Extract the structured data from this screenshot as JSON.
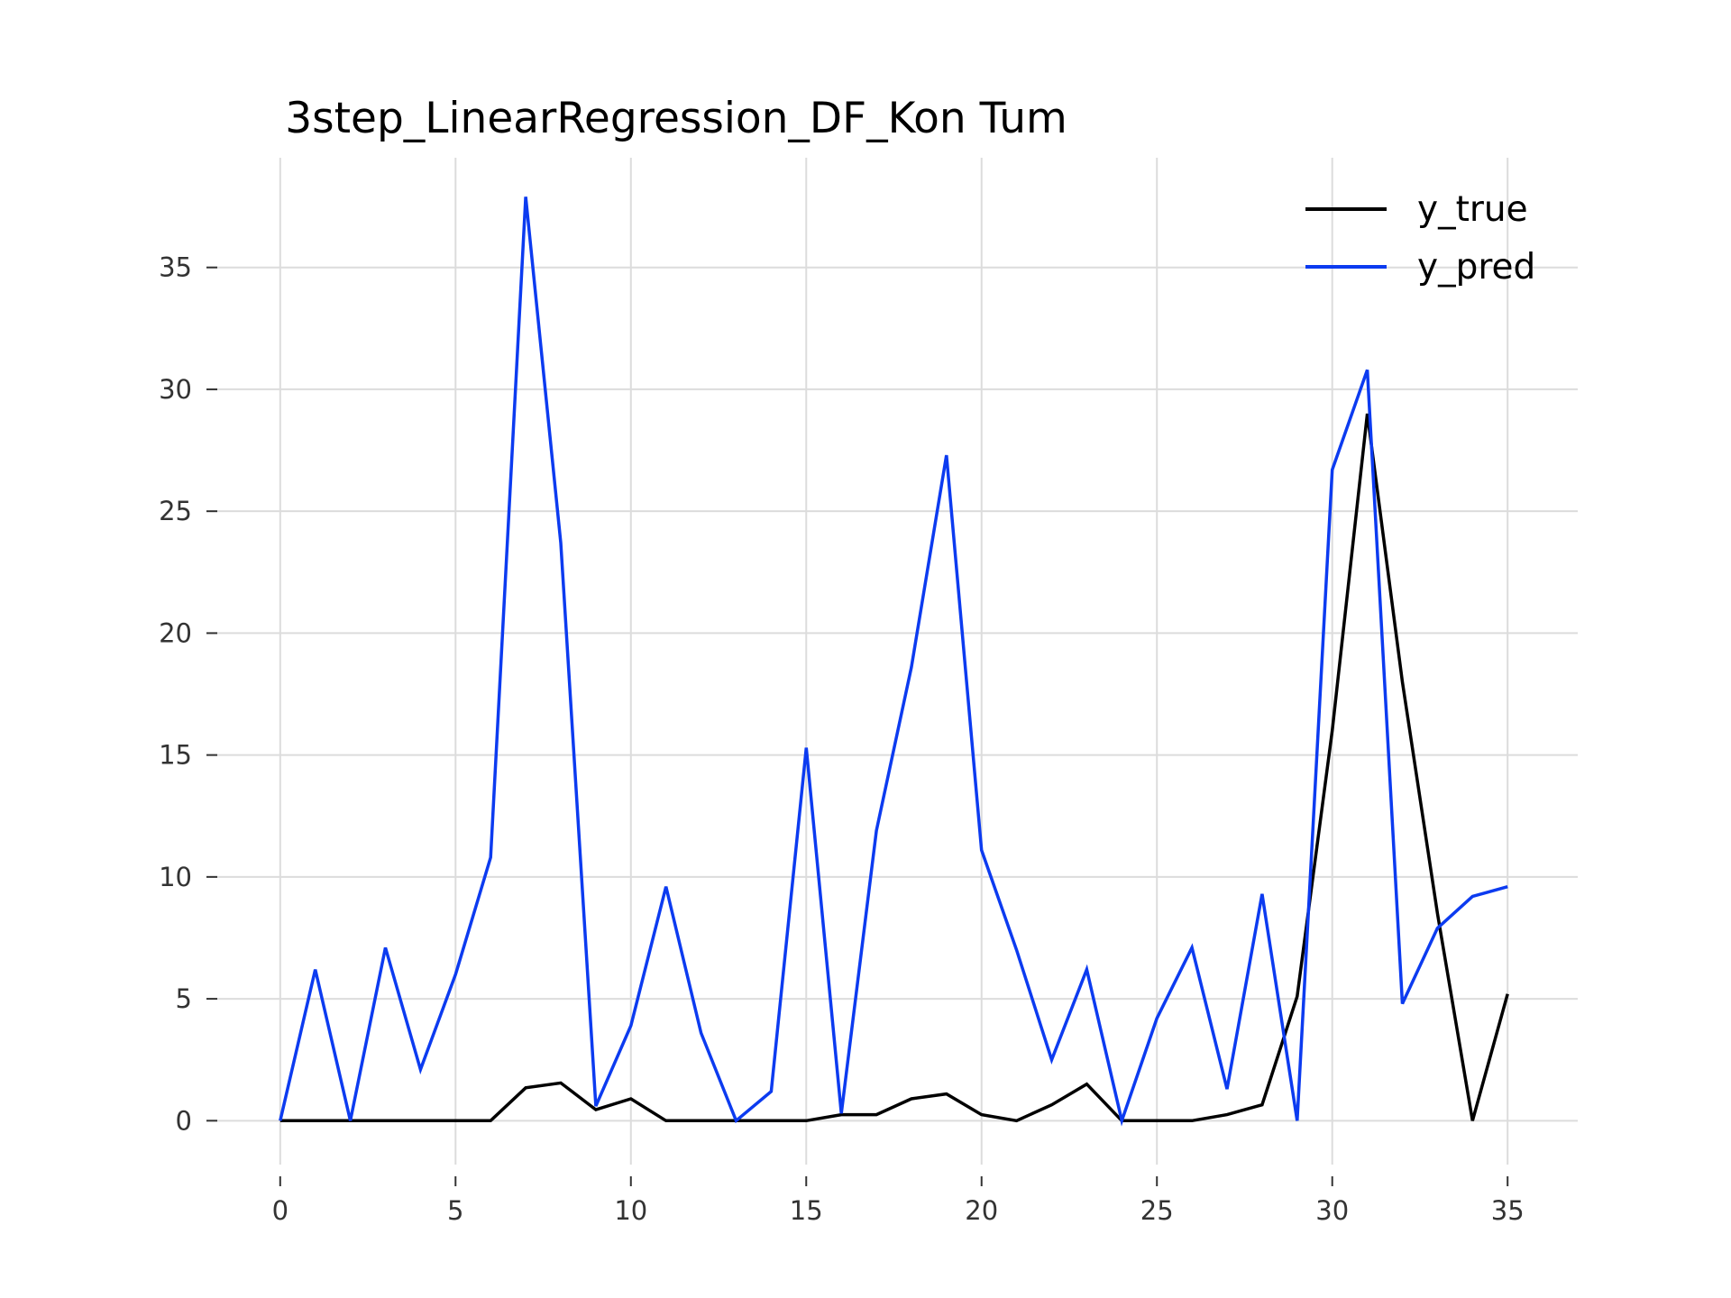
{
  "chart_data": {
    "type": "line",
    "title": "3step_LinearRegression_DF_Kon Tum",
    "xlabel": "",
    "ylabel": "",
    "xlim": [
      -2,
      37
    ],
    "ylim": [
      -1.8,
      39.5
    ],
    "x_ticks": [
      0,
      5,
      10,
      15,
      20,
      25,
      30,
      35
    ],
    "y_ticks": [
      0,
      5,
      10,
      15,
      20,
      25,
      30,
      35
    ],
    "grid": true,
    "legend_position": "top-right",
    "x": [
      0,
      1,
      2,
      3,
      4,
      5,
      6,
      7,
      8,
      9,
      10,
      11,
      12,
      13,
      14,
      15,
      16,
      17,
      18,
      19,
      20,
      21,
      22,
      23,
      24,
      25,
      26,
      27,
      28,
      29,
      30,
      31,
      32,
      33,
      34,
      35
    ],
    "series": [
      {
        "name": "y_true",
        "color": "#000000",
        "values": [
          0,
          0,
          0,
          0,
          0,
          0,
          0,
          1.35,
          1.55,
          0.45,
          0.9,
          0,
          0,
          0,
          0,
          0,
          0.25,
          0.25,
          0.9,
          1.1,
          0.25,
          0,
          0.65,
          1.5,
          0,
          0,
          0,
          0.25,
          0.65,
          5.1,
          16,
          29,
          18,
          8.5,
          0,
          5.2
        ]
      },
      {
        "name": "y_pred",
        "color": "#0c3bf0",
        "values": [
          0,
          6.2,
          0,
          7.1,
          2.1,
          6,
          10.8,
          37.9,
          23.7,
          0.6,
          3.9,
          9.6,
          3.6,
          0,
          1.2,
          15.3,
          0.3,
          11.9,
          18.6,
          27.3,
          11.1,
          7,
          2.5,
          6.2,
          0,
          4.2,
          7.1,
          1.3,
          9.3,
          0,
          26.7,
          30.8,
          4.8,
          7.9,
          9.2,
          9.6
        ]
      }
    ]
  }
}
